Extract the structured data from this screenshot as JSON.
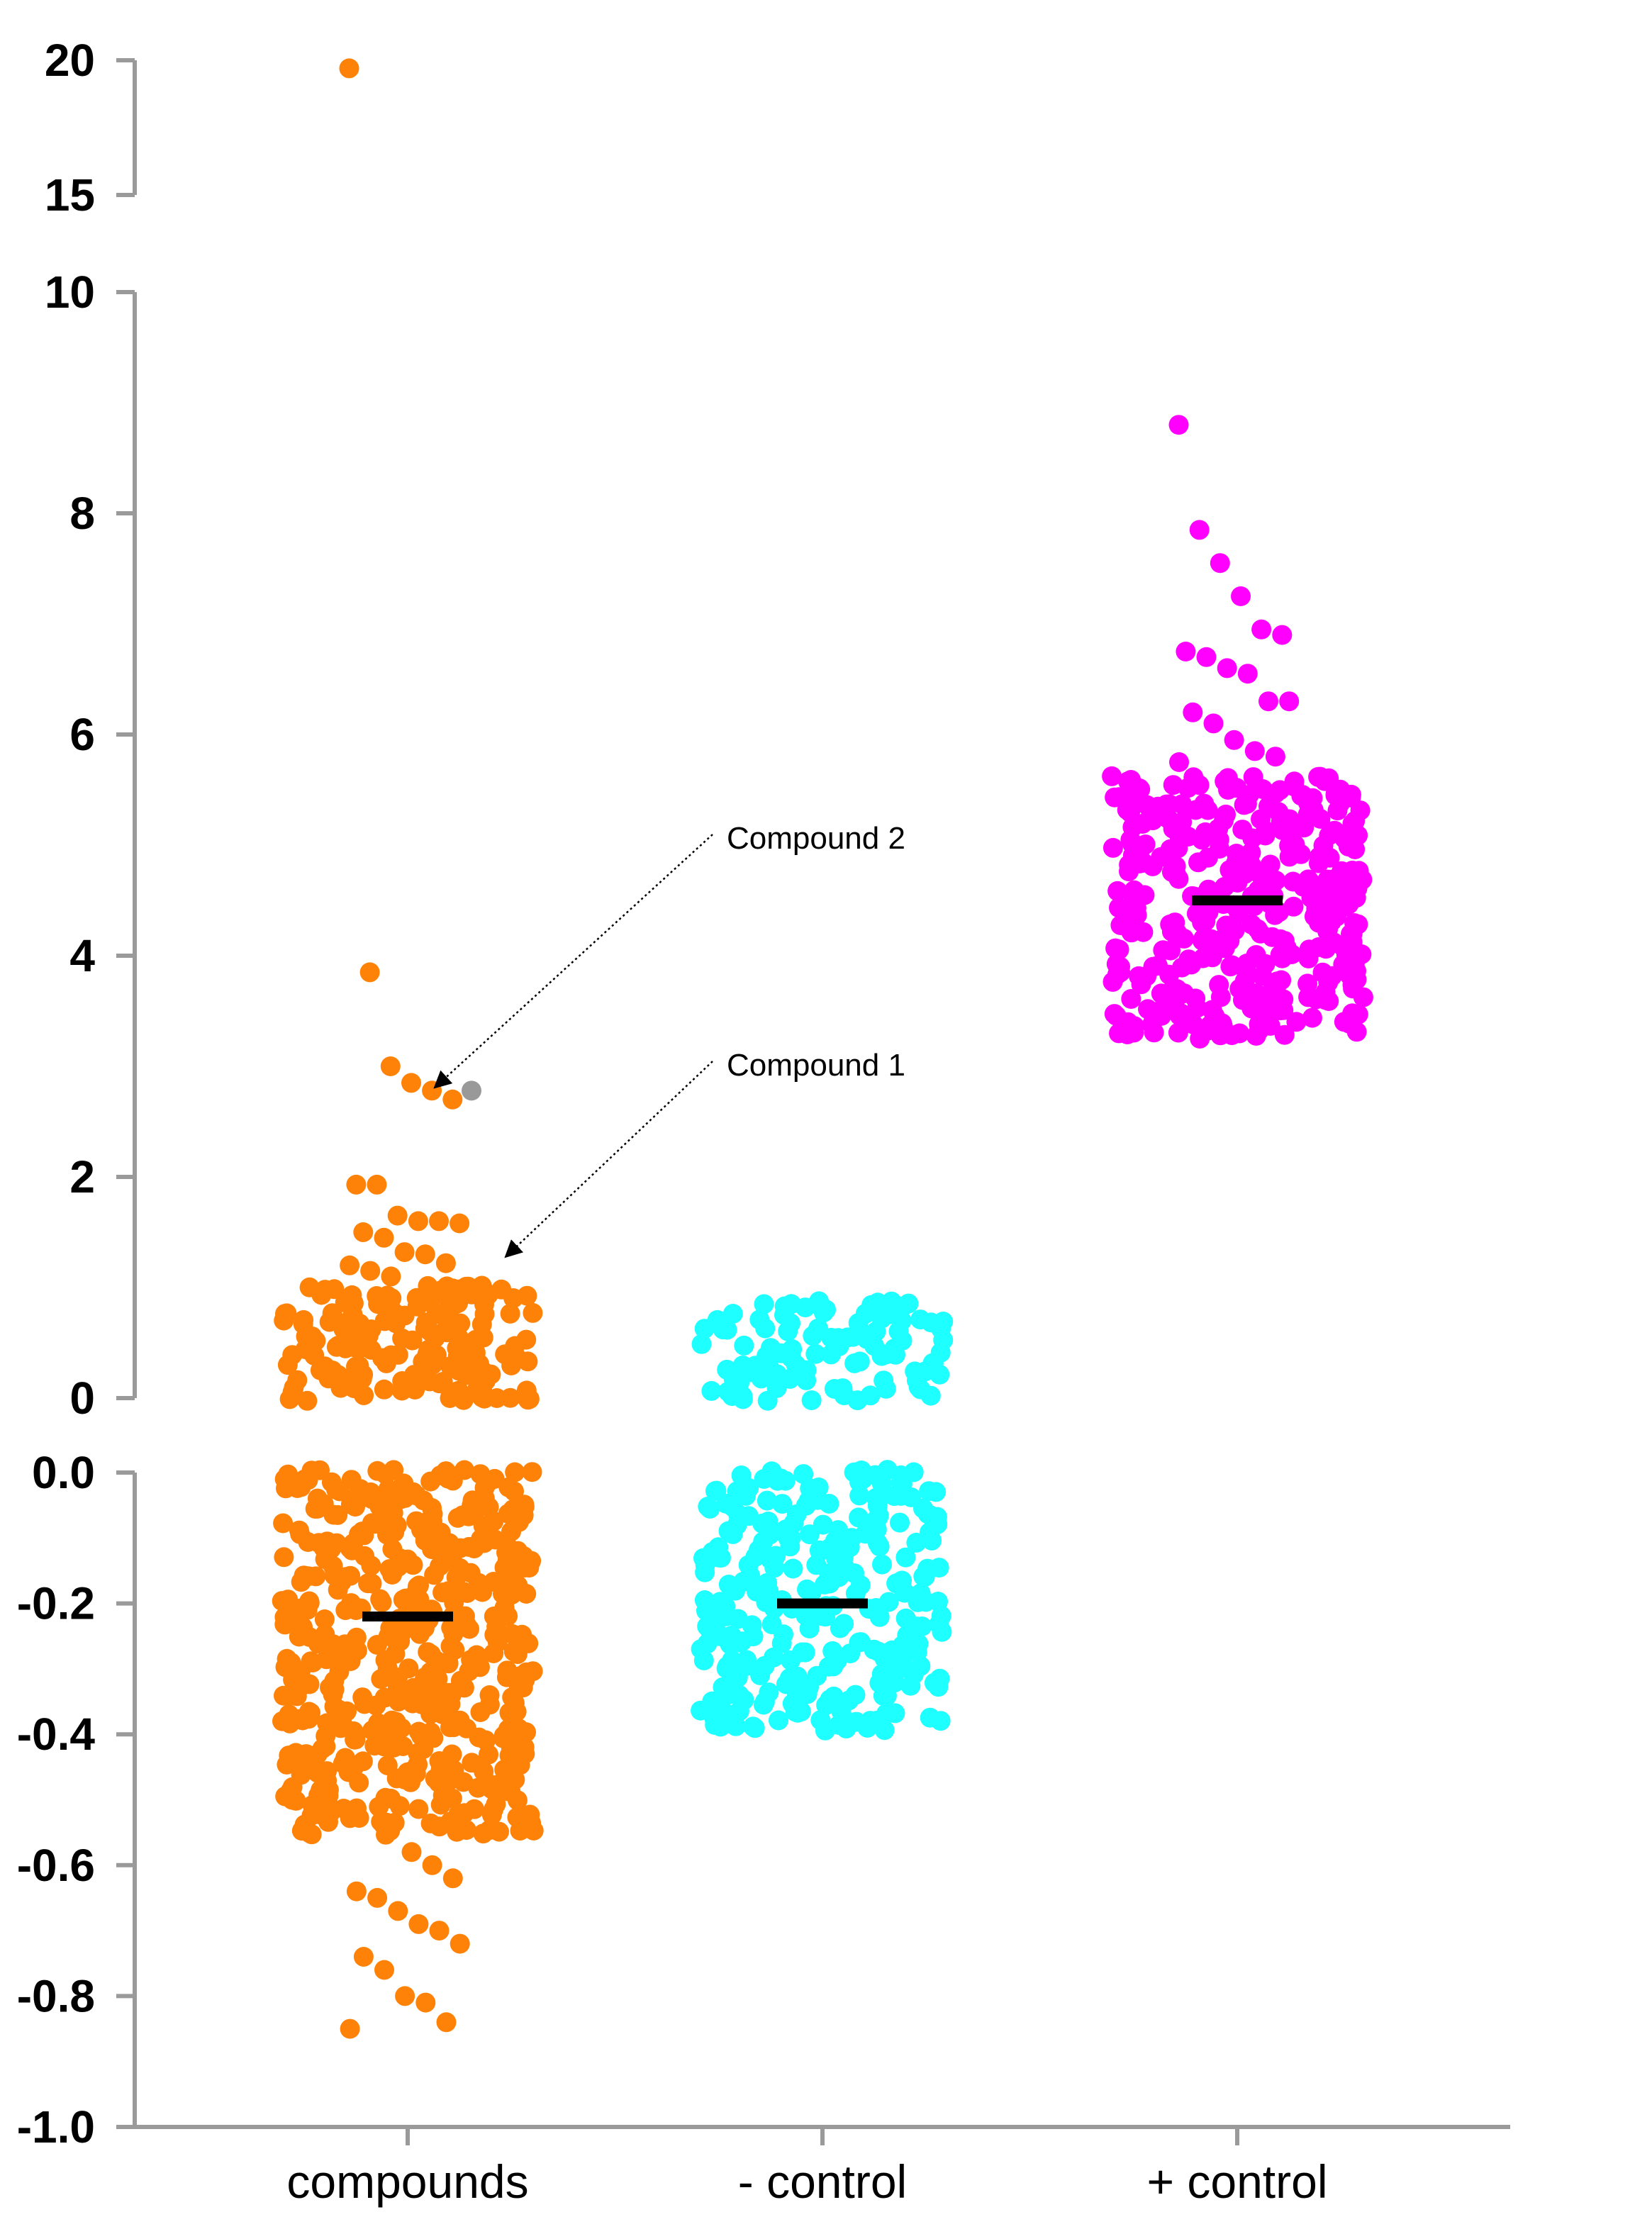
{
  "chart_data": {
    "type": "scatter",
    "subtype": "beeswarm dot plot with broken y-axis",
    "title": "",
    "xlabel": "",
    "ylabel": "",
    "categories": [
      "compounds",
      "- control",
      "+ control"
    ],
    "y_axis_segments": [
      {
        "range": [
          15,
          20
        ],
        "ticks": [
          20,
          15
        ],
        "tick_labels": [
          "20",
          "15"
        ]
      },
      {
        "range": [
          0,
          10
        ],
        "ticks": [
          10,
          8,
          6,
          4,
          2,
          0
        ],
        "tick_labels": [
          "10",
          "8",
          "6",
          "4",
          "2",
          "0"
        ]
      },
      {
        "range": [
          -1.0,
          0.0
        ],
        "ticks": [
          0.0,
          -0.2,
          -0.4,
          -0.6,
          -0.8,
          -1.0
        ],
        "tick_labels": [
          "0.0",
          "-0.2",
          "-0.4",
          "-0.6",
          "-0.8",
          "-1.0"
        ]
      }
    ],
    "grid": false,
    "legend": "none",
    "series": [
      {
        "category": "compounds",
        "color": "#FF8208",
        "mean": -0.22,
        "cluster_ranges": [
          [
            0.0,
            1.0
          ],
          [
            -0.55,
            0.0
          ]
        ],
        "outliers": [
          19.7,
          3.85,
          3.0,
          2.85,
          2.78,
          2.7,
          1.93,
          1.93,
          1.65,
          1.6,
          1.6,
          1.58,
          1.5,
          1.45,
          1.32,
          1.3,
          1.22,
          1.2,
          1.15,
          1.1,
          -0.58,
          -0.6,
          -0.62,
          -0.64,
          -0.65,
          -0.67,
          -0.69,
          -0.7,
          -0.72,
          -0.74,
          -0.76,
          -0.8,
          -0.81,
          -0.84,
          -0.85
        ]
      },
      {
        "category": "- control",
        "color": "#1EFFFF",
        "mean": -0.2,
        "cluster_ranges": [
          [
            0.0,
            0.85
          ],
          [
            -0.39,
            0.0
          ]
        ],
        "outliers": [
          0.85,
          0.83,
          0.82,
          0.8,
          -0.38,
          -0.39
        ]
      },
      {
        "category": "+ control",
        "color": "#FF00FF",
        "mean": 4.5,
        "cluster_ranges": [
          [
            3.3,
            5.6
          ]
        ],
        "outliers": [
          8.8,
          7.85,
          7.55,
          7.25,
          6.95,
          6.9,
          6.75,
          6.7,
          6.6,
          6.55,
          6.3,
          6.3,
          6.2,
          6.1,
          5.95,
          5.85,
          5.8,
          5.75,
          3.25,
          3.28
        ]
      }
    ],
    "annotations": [
      {
        "label": "Compound 2",
        "points_to_value": 2.78,
        "category": "compounds"
      },
      {
        "label": "Compound 1",
        "points_to_value": 1.25,
        "category": "compounds"
      }
    ],
    "highlighted_point": {
      "value": 2.78,
      "category": "compounds",
      "color": "#999999"
    }
  }
}
